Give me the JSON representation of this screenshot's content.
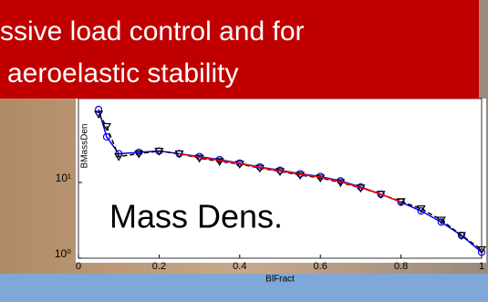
{
  "banner": {
    "lines": [
      "ssive load control and for",
      "aeroelastic stability"
    ]
  },
  "chart_data": {
    "type": "line",
    "annotation": "Mass Dens.",
    "x_label": "BlFract",
    "y_label": "BMassDen",
    "log_y": true,
    "xlim": [
      0,
      1
    ],
    "xticks": [
      0,
      0.2,
      0.4,
      0.6,
      0.8,
      1
    ],
    "ylim": [
      1,
      100
    ],
    "yticks": [
      {
        "value": 1,
        "label": "10⁰"
      },
      {
        "value": 10,
        "label": "10¹"
      }
    ],
    "x": [
      0.05,
      0.07,
      0.1,
      0.15,
      0.2,
      0.25,
      0.3,
      0.35,
      0.4,
      0.45,
      0.5,
      0.55,
      0.6,
      0.65,
      0.7,
      0.75,
      0.8,
      0.85,
      0.9,
      0.95,
      1.0
    ],
    "series": [
      {
        "color": "#0000ff",
        "marker": "circle",
        "dash": false,
        "values": [
          92,
          40,
          24,
          25,
          26,
          24,
          22,
          20,
          18,
          16,
          14.5,
          13,
          12,
          10.5,
          8.7,
          7,
          5.5,
          4.2,
          3,
          2,
          1.2
        ]
      },
      {
        "color": "#000000",
        "marker": "triangle",
        "dash": true,
        "values": [
          80,
          55,
          22,
          24,
          26,
          24,
          21,
          19,
          17.5,
          15.5,
          14,
          12.5,
          11.5,
          10,
          8.5,
          7,
          5.6,
          4.5,
          3.2,
          2,
          1.3
        ]
      },
      {
        "color": "#ff0000",
        "marker": "none",
        "dash": false,
        "values": [
          null,
          null,
          null,
          null,
          null,
          24,
          21.5,
          19.5,
          17.8,
          15.8,
          14.2,
          12.8,
          11.8,
          10.2,
          8.6,
          7,
          5.5,
          null,
          null,
          null,
          null
        ]
      }
    ]
  }
}
